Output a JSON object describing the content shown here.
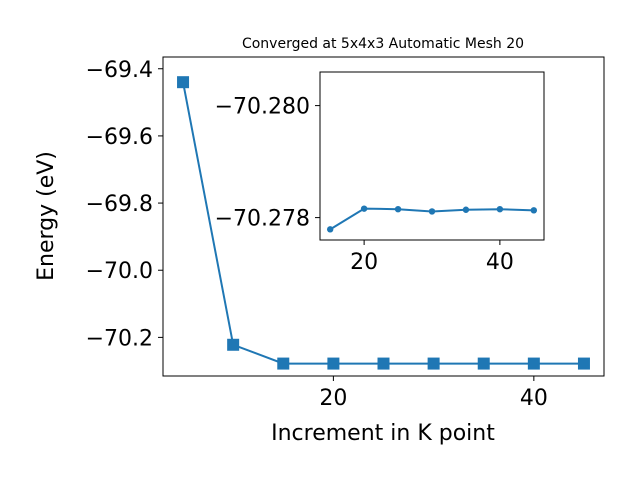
{
  "chart_data": [
    {
      "type": "line",
      "title": "Converged at 5x4x3 Automatic Mesh 20",
      "xlabel": "Increment in K point",
      "ylabel": "Energy (eV)",
      "xlim": [
        3,
        47
      ],
      "ylim": [
        -70.315,
        -69.365
      ],
      "xticks": [
        20,
        40
      ],
      "xtick_labels": [
        "20",
        "40"
      ],
      "yticks": [
        -69.4,
        -69.6,
        -69.8,
        -70.0,
        -70.2
      ],
      "ytick_labels": [
        "−69.4",
        "−69.6",
        "−69.8",
        "−70.0",
        "−70.2"
      ],
      "grid": false,
      "marker": "square",
      "color": "#1f77b4",
      "series": [
        {
          "x": [
            5,
            10,
            15,
            20,
            25,
            30,
            35,
            40,
            45
          ],
          "y": [
            -69.44,
            -70.222,
            -70.278,
            -70.278,
            -70.278,
            -70.278,
            -70.278,
            -70.278,
            -70.278
          ]
        }
      ]
    },
    {
      "type": "line",
      "title": "",
      "xlim": [
        13.5,
        46.5
      ],
      "ylim": [
        -70.2776,
        -70.2806
      ],
      "xticks": [
        20,
        40
      ],
      "xtick_labels": [
        "20",
        "40"
      ],
      "yticks": [
        -70.28,
        -70.278
      ],
      "ytick_labels": [
        "−70.280",
        "−70.278"
      ],
      "grid": false,
      "marker": "circle",
      "color": "#1f77b4",
      "series": [
        {
          "x": [
            15,
            20,
            25,
            30,
            35,
            40,
            45
          ],
          "y": [
            -70.27779,
            -70.27816,
            -70.27815,
            -70.27811,
            -70.27814,
            -70.27815,
            -70.27813
          ]
        }
      ]
    }
  ]
}
